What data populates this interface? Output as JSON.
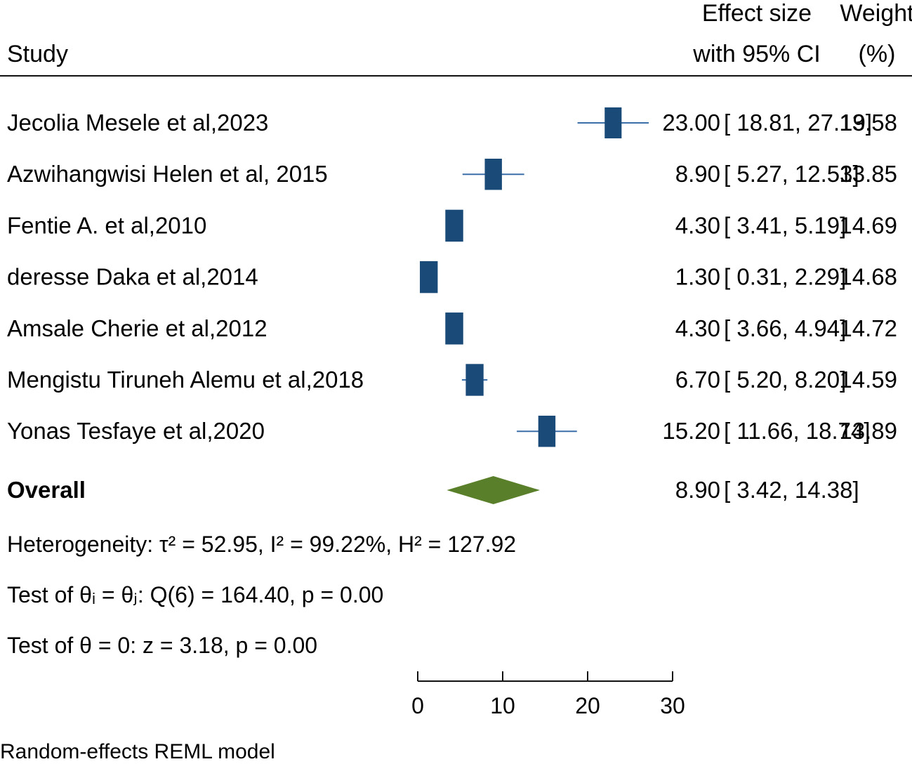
{
  "header": {
    "study": "Study",
    "effect_line1": "Effect size",
    "effect_line2": "with 95% CI",
    "weight_line1": "Weight",
    "weight_line2": "(%)"
  },
  "colors": {
    "study_marker": "#1a4a78",
    "ci_line": "#3a6fa8",
    "overall_diamond": "#5a7f2a",
    "text": "#111111"
  },
  "chart_data": {
    "type": "forest",
    "x_axis": {
      "ticks": [
        0,
        10,
        20,
        30
      ],
      "range": [
        0,
        30
      ]
    },
    "studies": [
      {
        "label": "Jecolia Mesele et al,2023",
        "es": 23.0,
        "lo": 18.81,
        "hi": 27.19,
        "es_text": "23.00",
        "ci_text": "[ 18.81, 27.19]",
        "weight": "13.58"
      },
      {
        "label": "Azwihangwisi Helen et al, 2015",
        "es": 8.9,
        "lo": 5.27,
        "hi": 12.53,
        "es_text": "8.90",
        "ci_text": "[ 5.27, 12.53]",
        "weight": "13.85"
      },
      {
        "label": "Fentie A. et al,2010",
        "es": 4.3,
        "lo": 3.41,
        "hi": 5.19,
        "es_text": "4.30",
        "ci_text": "[ 3.41, 5.19]",
        "weight": "14.69"
      },
      {
        "label": "deresse Daka et al,2014",
        "es": 1.3,
        "lo": 0.31,
        "hi": 2.29,
        "es_text": "1.30",
        "ci_text": "[ 0.31, 2.29]",
        "weight": "14.68"
      },
      {
        "label": "Amsale Cherie et al,2012",
        "es": 4.3,
        "lo": 3.66,
        "hi": 4.94,
        "es_text": "4.30",
        "ci_text": "[ 3.66, 4.94]",
        "weight": "14.72"
      },
      {
        "label": "Mengistu Tiruneh Alemu et al,2018",
        "es": 6.7,
        "lo": 5.2,
        "hi": 8.2,
        "es_text": "6.70",
        "ci_text": "[ 5.20, 8.20]",
        "weight": "14.59"
      },
      {
        "label": "Yonas Tesfaye et al,2020",
        "es": 15.2,
        "lo": 11.66,
        "hi": 18.74,
        "es_text": "15.20",
        "ci_text": "[ 11.66, 18.74]",
        "weight": "13.89"
      }
    ],
    "overall": {
      "label": "Overall",
      "es": 8.9,
      "lo": 3.42,
      "hi": 14.38,
      "es_text": "8.90",
      "ci_text": "[ 3.42, 14.38]"
    }
  },
  "stats": {
    "heterogeneity": "Heterogeneity: τ² = 52.95, I² = 99.22%, H² = 127.92",
    "test_theta_i": "Test of θᵢ = θⱼ: Q(6) = 164.40, p = 0.00",
    "test_theta_0": "Test of θ = 0: z = 3.18, p = 0.00"
  },
  "footer": {
    "model": "Random-effects REML model"
  }
}
